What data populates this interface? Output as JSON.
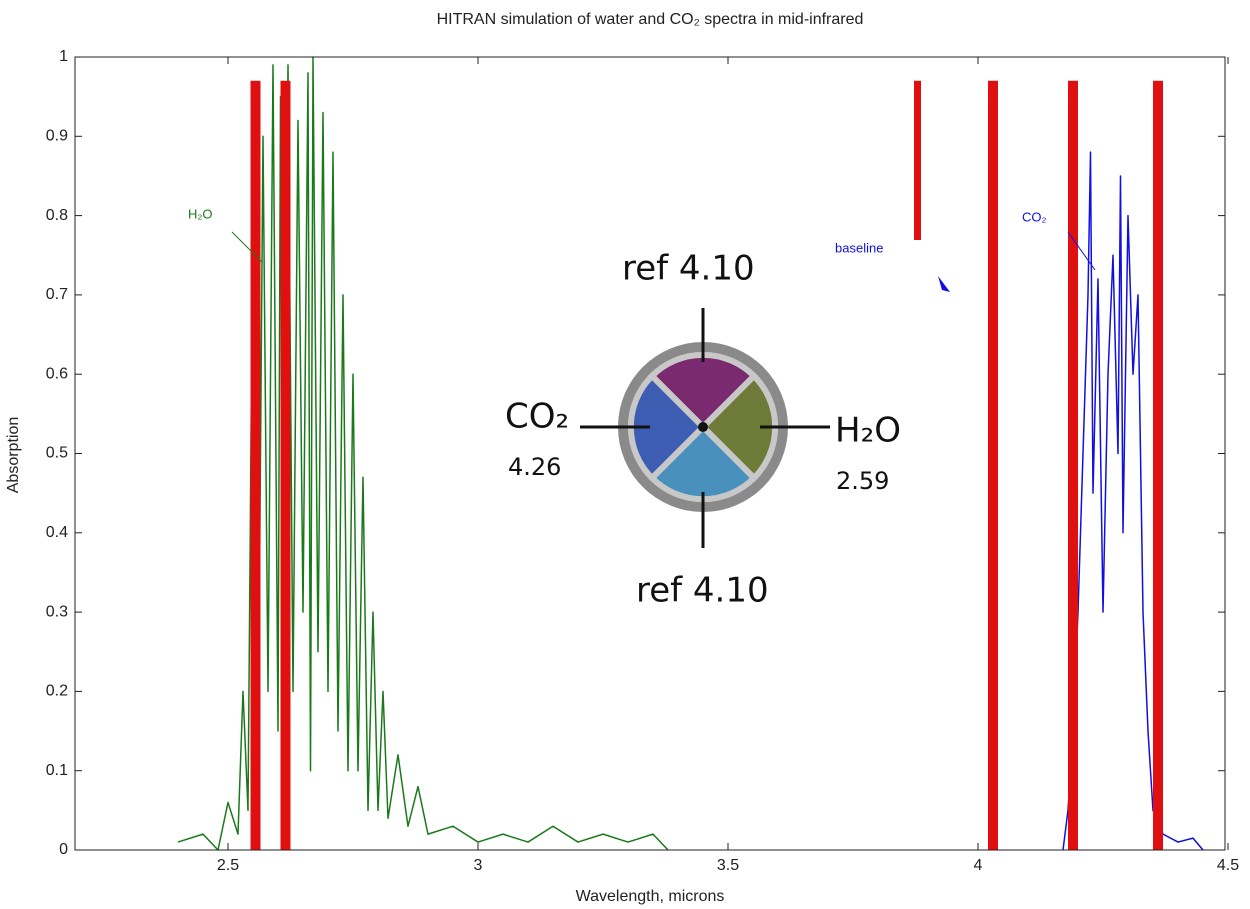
{
  "chart_data": {
    "type": "spectrum",
    "title": "HITRAN simulation of water and CO₂ spectra in mid-infrared",
    "xlabel": "Wavelength, microns",
    "ylabel": "Absorption",
    "xlim": [
      2.2,
      4.5
    ],
    "ylim": [
      0,
      1
    ],
    "xticks": [
      2.5,
      3,
      3.5,
      4,
      4.5
    ],
    "yticks": [
      0,
      0.1,
      0.2,
      0.3,
      0.4,
      0.5,
      0.6,
      0.7,
      0.8,
      0.9,
      1
    ],
    "series": [
      {
        "name": "H₂O",
        "color": "#1a7a1a",
        "x": [
          2.4,
          2.45,
          2.48,
          2.5,
          2.52,
          2.53,
          2.54,
          2.55,
          2.56,
          2.57,
          2.58,
          2.59,
          2.6,
          2.605,
          2.61,
          2.62,
          2.63,
          2.64,
          2.65,
          2.66,
          2.665,
          2.67,
          2.68,
          2.69,
          2.7,
          2.71,
          2.72,
          2.73,
          2.74,
          2.75,
          2.76,
          2.77,
          2.78,
          2.79,
          2.8,
          2.81,
          2.82,
          2.84,
          2.86,
          2.88,
          2.9,
          2.95,
          3.0,
          3.05,
          3.1,
          3.15,
          3.2,
          3.25,
          3.3,
          3.35,
          3.38
        ],
        "values": [
          0.01,
          0.02,
          0.0,
          0.06,
          0.02,
          0.2,
          0.05,
          0.83,
          0.1,
          0.9,
          0.2,
          0.99,
          0.15,
          0.95,
          0.3,
          0.99,
          0.2,
          0.92,
          0.3,
          0.98,
          0.1,
          1.0,
          0.25,
          0.93,
          0.2,
          0.88,
          0.15,
          0.7,
          0.1,
          0.6,
          0.1,
          0.47,
          0.05,
          0.3,
          0.05,
          0.2,
          0.04,
          0.12,
          0.03,
          0.08,
          0.02,
          0.03,
          0.01,
          0.02,
          0.01,
          0.03,
          0.01,
          0.02,
          0.01,
          0.02,
          0.0
        ]
      },
      {
        "name": "CO₂",
        "color": "#1010e0",
        "x": [
          4.17,
          4.18,
          4.19,
          4.2,
          4.21,
          4.22,
          4.225,
          4.23,
          4.24,
          4.25,
          4.26,
          4.27,
          4.28,
          4.285,
          4.29,
          4.3,
          4.31,
          4.32,
          4.33,
          4.34,
          4.35,
          4.37,
          4.4,
          4.43,
          4.45
        ],
        "values": [
          0.0,
          0.05,
          0.15,
          0.3,
          0.5,
          0.7,
          0.88,
          0.45,
          0.72,
          0.3,
          0.6,
          0.75,
          0.5,
          0.85,
          0.4,
          0.8,
          0.6,
          0.7,
          0.3,
          0.15,
          0.05,
          0.02,
          0.01,
          0.015,
          0.0
        ]
      }
    ],
    "filter_bands": {
      "color": "#e01010",
      "x": [
        2.555,
        2.615,
        4.03,
        4.19,
        4.36
      ],
      "values": [
        0.97,
        0.97,
        0.97,
        0.97,
        0.97
      ]
    },
    "baseline_band": {
      "label": "baseline",
      "x": 3.88,
      "range": [
        0.76,
        0.97
      ]
    }
  },
  "filter_wheel": {
    "top": "ref 4.10",
    "bottom": "ref 4.10",
    "left": "CO₂",
    "left_value": "4.26",
    "right": "H₂O",
    "right_value": "2.59"
  }
}
